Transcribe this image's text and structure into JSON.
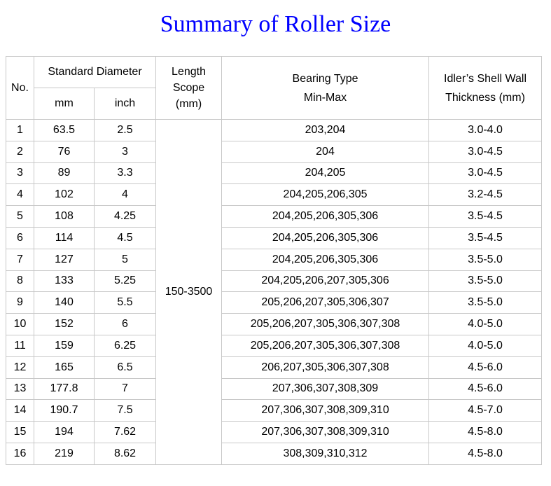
{
  "page": {
    "title": "Summary of Roller Size",
    "title_color": "#0000ff",
    "background_color": "#ffffff",
    "border_color": "#c8c8c8",
    "text_color": "#000000"
  },
  "table": {
    "headers": {
      "no": "No.",
      "standard_diameter": "Standard Diameter",
      "mm": "mm",
      "inch": "inch",
      "length_scope_lines": [
        "Length",
        "Scope",
        "(mm)"
      ],
      "bearing_type_lines": [
        "Bearing Type",
        "Min-Max"
      ],
      "shell_wall_lines": [
        "Idler’s Shell Wall",
        "Thickness (mm)"
      ]
    },
    "length_scope_value": "150-3500",
    "rows": [
      {
        "no": "1",
        "mm": "63.5",
        "inch": "2.5",
        "bearing": "203,204",
        "thickness": "3.0-4.0"
      },
      {
        "no": "2",
        "mm": "76",
        "inch": "3",
        "bearing": "204",
        "thickness": "3.0-4.5"
      },
      {
        "no": "3",
        "mm": "89",
        "inch": "3.3",
        "bearing": "204,205",
        "thickness": "3.0-4.5"
      },
      {
        "no": "4",
        "mm": "102",
        "inch": "4",
        "bearing": "204,205,206,305",
        "thickness": "3.2-4.5"
      },
      {
        "no": "5",
        "mm": "108",
        "inch": "4.25",
        "bearing": "204,205,206,305,306",
        "thickness": "3.5-4.5"
      },
      {
        "no": "6",
        "mm": "114",
        "inch": "4.5",
        "bearing": "204,205,206,305,306",
        "thickness": "3.5-4.5"
      },
      {
        "no": "7",
        "mm": "127",
        "inch": "5",
        "bearing": "204,205,206,305,306",
        "thickness": "3.5-5.0"
      },
      {
        "no": "8",
        "mm": "133",
        "inch": "5.25",
        "bearing": "204,205,206,207,305,306",
        "thickness": "3.5-5.0"
      },
      {
        "no": "9",
        "mm": "140",
        "inch": "5.5",
        "bearing": "205,206,207,305,306,307",
        "thickness": "3.5-5.0"
      },
      {
        "no": "10",
        "mm": "152",
        "inch": "6",
        "bearing": "205,206,207,305,306,307,308",
        "thickness": "4.0-5.0"
      },
      {
        "no": "11",
        "mm": "159",
        "inch": "6.25",
        "bearing": "205,206,207,305,306,307,308",
        "thickness": "4.0-5.0"
      },
      {
        "no": "12",
        "mm": "165",
        "inch": "6.5",
        "bearing": "206,207,305,306,307,308",
        "thickness": "4.5-6.0"
      },
      {
        "no": "13",
        "mm": "177.8",
        "inch": "7",
        "bearing": "207,306,307,308,309",
        "thickness": "4.5-6.0"
      },
      {
        "no": "14",
        "mm": "190.7",
        "inch": "7.5",
        "bearing": "207,306,307,308,309,310",
        "thickness": "4.5-7.0"
      },
      {
        "no": "15",
        "mm": "194",
        "inch": "7.62",
        "bearing": "207,306,307,308,309,310",
        "thickness": "4.5-8.0"
      },
      {
        "no": "16",
        "mm": "219",
        "inch": "8.62",
        "bearing": "308,309,310,312",
        "thickness": "4.5-8.0"
      }
    ]
  }
}
